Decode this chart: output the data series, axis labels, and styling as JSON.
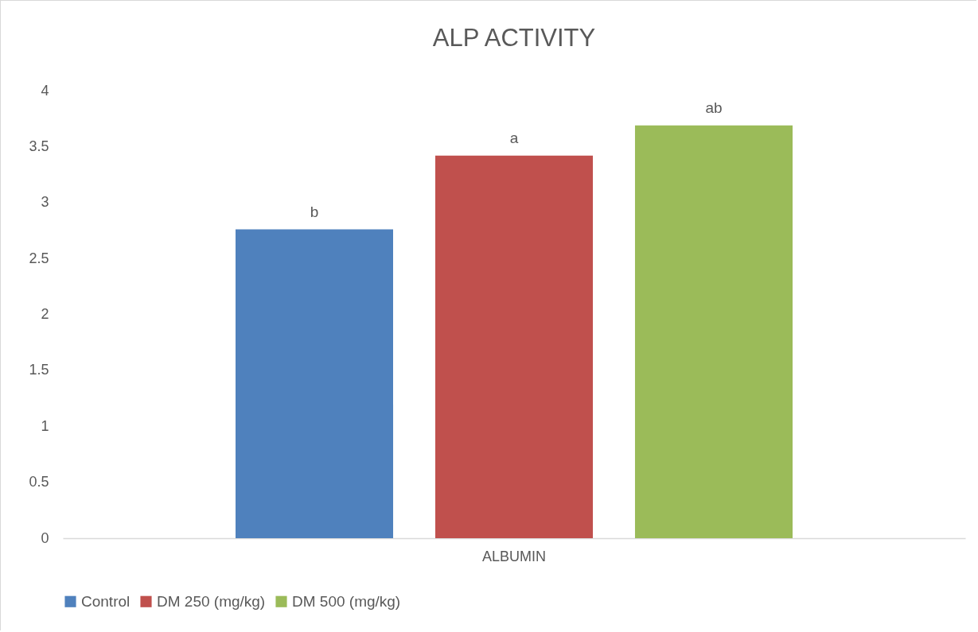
{
  "chart_data": {
    "type": "bar",
    "title": "ALP ACTIVITY",
    "categories": [
      "ALBUMIN"
    ],
    "series": [
      {
        "name": "Control",
        "color": "#4f81bd",
        "values": [
          2.76
        ],
        "value_labels": [
          "b"
        ]
      },
      {
        "name": "DM 250 (mg/kg)",
        "color": "#c0504d",
        "values": [
          3.42
        ],
        "value_labels": [
          "a"
        ]
      },
      {
        "name": "DM 500 (mg/kg)",
        "color": "#9bbb59",
        "values": [
          3.69
        ],
        "value_labels": [
          "ab"
        ]
      }
    ],
    "ylim": [
      0,
      4
    ],
    "yticks": [
      0,
      0.5,
      1,
      1.5,
      2,
      2.5,
      3,
      3.5,
      4
    ],
    "grid": false,
    "legend": "bottom"
  }
}
